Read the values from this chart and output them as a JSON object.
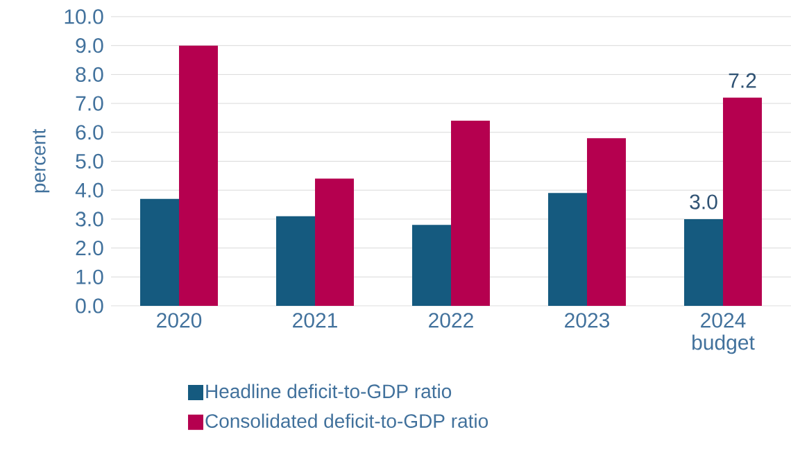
{
  "chart_data": {
    "type": "bar",
    "ylabel": "percent",
    "categories": [
      "2020",
      "2021",
      "2022",
      "2023",
      "2024 budget"
    ],
    "series": [
      {
        "name": "Headline deficit-to-GDP ratio",
        "color": "#155a7f",
        "values": [
          3.7,
          3.1,
          2.8,
          3.9,
          3.0
        ],
        "value_labels": [
          null,
          null,
          null,
          null,
          "3.0"
        ]
      },
      {
        "name": "Consolidated deficit-to-GDP ratio",
        "color": "#b5004f",
        "values": [
          9.0,
          4.4,
          6.4,
          5.8,
          7.2
        ],
        "value_labels": [
          null,
          null,
          null,
          null,
          "7.2"
        ]
      }
    ],
    "ylim": [
      0,
      10
    ],
    "yticks": [
      {
        "value": 0,
        "label": "0.0"
      },
      {
        "value": 1,
        "label": "1.0"
      },
      {
        "value": 2,
        "label": "2.0"
      },
      {
        "value": 3,
        "label": "3.0"
      },
      {
        "value": 4,
        "label": "4.0"
      },
      {
        "value": 5,
        "label": "5.0"
      },
      {
        "value": 6,
        "label": "6.0"
      },
      {
        "value": 7,
        "label": "7.0"
      },
      {
        "value": 8,
        "label": "8.0"
      },
      {
        "value": 9,
        "label": "9.0"
      },
      {
        "value": 10,
        "label": "10.0"
      }
    ],
    "grid": "y",
    "legend": "bottom"
  }
}
